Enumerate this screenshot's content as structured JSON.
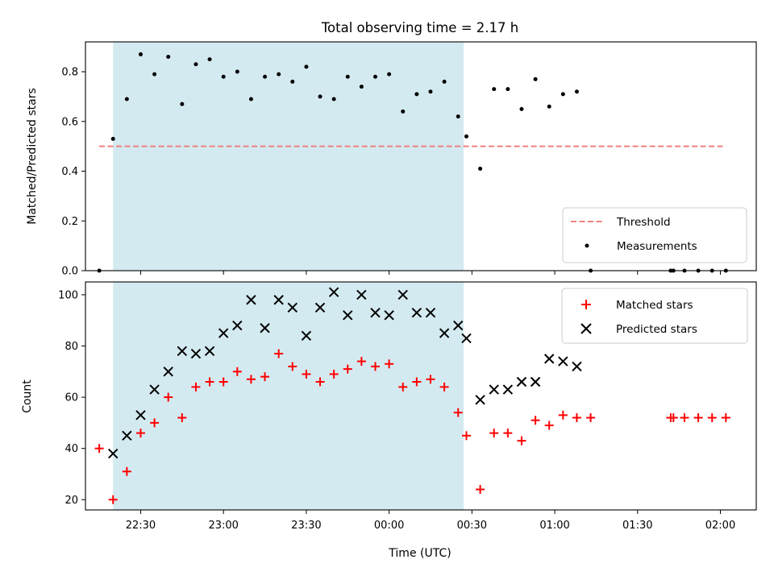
{
  "chart_data": [
    {
      "type": "scatter",
      "title": "Total observing time = 2.17 h",
      "xlabel": "",
      "ylabel": "Matched/Predicted stars",
      "ylim": [
        0,
        0.92
      ],
      "yticks": [
        "0.0",
        "0.2",
        "0.4",
        "0.6",
        "0.8"
      ],
      "xrange": [
        "22:10",
        "02:13"
      ],
      "shaded_span": [
        "22:20",
        "00:27"
      ],
      "shade_color": "#d4eaf1",
      "legend_position": "lower right",
      "threshold": {
        "name": "Threshold",
        "value": 0.5,
        "x_start": "22:15",
        "x_end": "02:02",
        "color": "#f08080"
      },
      "series": [
        {
          "name": "Measurements",
          "color": "#000000",
          "points": [
            [
              "22:15",
              0.0
            ],
            [
              "22:20",
              0.53
            ],
            [
              "22:25",
              0.69
            ],
            [
              "22:30",
              0.87
            ],
            [
              "22:35",
              0.79
            ],
            [
              "22:40",
              0.86
            ],
            [
              "22:45",
              0.67
            ],
            [
              "22:50",
              0.83
            ],
            [
              "22:55",
              0.85
            ],
            [
              "23:00",
              0.78
            ],
            [
              "23:05",
              0.8
            ],
            [
              "23:10",
              0.69
            ],
            [
              "23:15",
              0.78
            ],
            [
              "23:20",
              0.79
            ],
            [
              "23:25",
              0.76
            ],
            [
              "23:30",
              0.82
            ],
            [
              "23:35",
              0.7
            ],
            [
              "23:40",
              0.69
            ],
            [
              "23:45",
              0.78
            ],
            [
              "23:50",
              0.74
            ],
            [
              "23:55",
              0.78
            ],
            [
              "00:00",
              0.79
            ],
            [
              "00:05",
              0.64
            ],
            [
              "00:10",
              0.71
            ],
            [
              "00:15",
              0.72
            ],
            [
              "00:20",
              0.76
            ],
            [
              "00:25",
              0.62
            ],
            [
              "00:28",
              0.54
            ],
            [
              "00:33",
              0.41
            ],
            [
              "00:38",
              0.73
            ],
            [
              "00:43",
              0.73
            ],
            [
              "00:48",
              0.65
            ],
            [
              "00:53",
              0.77
            ],
            [
              "00:58",
              0.66
            ],
            [
              "01:03",
              0.71
            ],
            [
              "01:08",
              0.72
            ],
            [
              "01:13",
              0.0
            ],
            [
              "01:42",
              0.0
            ],
            [
              "01:43",
              0.0
            ],
            [
              "01:47",
              0.0
            ],
            [
              "01:52",
              0.0
            ],
            [
              "01:57",
              0.0
            ],
            [
              "02:02",
              0.0
            ]
          ]
        }
      ]
    },
    {
      "type": "scatter",
      "title": "",
      "xlabel": "Time (UTC)",
      "ylabel": "Count",
      "ylim": [
        16,
        105
      ],
      "yticks": [
        "20",
        "40",
        "60",
        "80",
        "100"
      ],
      "xrange": [
        "22:10",
        "02:13"
      ],
      "xticks": [
        "22:30",
        "23:00",
        "23:30",
        "00:00",
        "00:30",
        "01:00",
        "01:30",
        "02:00"
      ],
      "shaded_span": [
        "22:20",
        "00:27"
      ],
      "shade_color": "#d4eaf1",
      "legend_position": "upper right",
      "series": [
        {
          "name": "Matched stars",
          "marker": "plus",
          "color": "#ff0000",
          "points": [
            [
              "22:15",
              40
            ],
            [
              "22:20",
              20
            ],
            [
              "22:25",
              31
            ],
            [
              "22:30",
              46
            ],
            [
              "22:35",
              50
            ],
            [
              "22:40",
              60
            ],
            [
              "22:45",
              52
            ],
            [
              "22:50",
              64
            ],
            [
              "22:55",
              66
            ],
            [
              "23:00",
              66
            ],
            [
              "23:05",
              70
            ],
            [
              "23:10",
              67
            ],
            [
              "23:15",
              68
            ],
            [
              "23:20",
              77
            ],
            [
              "23:25",
              72
            ],
            [
              "23:30",
              69
            ],
            [
              "23:35",
              66
            ],
            [
              "23:40",
              69
            ],
            [
              "23:45",
              71
            ],
            [
              "23:50",
              74
            ],
            [
              "23:55",
              72
            ],
            [
              "00:00",
              73
            ],
            [
              "00:05",
              64
            ],
            [
              "00:10",
              66
            ],
            [
              "00:15",
              67
            ],
            [
              "00:20",
              64
            ],
            [
              "00:25",
              54
            ],
            [
              "00:28",
              45
            ],
            [
              "00:33",
              24
            ],
            [
              "00:38",
              46
            ],
            [
              "00:43",
              46
            ],
            [
              "00:48",
              43
            ],
            [
              "00:53",
              51
            ],
            [
              "00:58",
              49
            ],
            [
              "01:03",
              53
            ],
            [
              "01:08",
              52
            ],
            [
              "01:13",
              52
            ],
            [
              "01:42",
              52
            ],
            [
              "01:43",
              52
            ],
            [
              "01:47",
              52
            ],
            [
              "01:52",
              52
            ],
            [
              "01:57",
              52
            ],
            [
              "02:02",
              52
            ]
          ]
        },
        {
          "name": "Predicted stars",
          "marker": "x",
          "color": "#000000",
          "points": [
            [
              "22:20",
              38
            ],
            [
              "22:25",
              45
            ],
            [
              "22:30",
              53
            ],
            [
              "22:35",
              63
            ],
            [
              "22:40",
              70
            ],
            [
              "22:45",
              78
            ],
            [
              "22:50",
              77
            ],
            [
              "22:55",
              78
            ],
            [
              "23:00",
              85
            ],
            [
              "23:05",
              88
            ],
            [
              "23:10",
              98
            ],
            [
              "23:15",
              87
            ],
            [
              "23:20",
              98
            ],
            [
              "23:25",
              95
            ],
            [
              "23:30",
              84
            ],
            [
              "23:35",
              95
            ],
            [
              "23:40",
              101
            ],
            [
              "23:45",
              92
            ],
            [
              "23:50",
              100
            ],
            [
              "23:55",
              93
            ],
            [
              "00:00",
              92
            ],
            [
              "00:05",
              100
            ],
            [
              "00:10",
              93
            ],
            [
              "00:15",
              93
            ],
            [
              "00:20",
              85
            ],
            [
              "00:25",
              88
            ],
            [
              "00:28",
              83
            ],
            [
              "00:33",
              59
            ],
            [
              "00:38",
              63
            ],
            [
              "00:43",
              63
            ],
            [
              "00:48",
              66
            ],
            [
              "00:53",
              66
            ],
            [
              "00:58",
              75
            ],
            [
              "01:03",
              74
            ],
            [
              "01:08",
              72
            ]
          ]
        }
      ]
    }
  ]
}
